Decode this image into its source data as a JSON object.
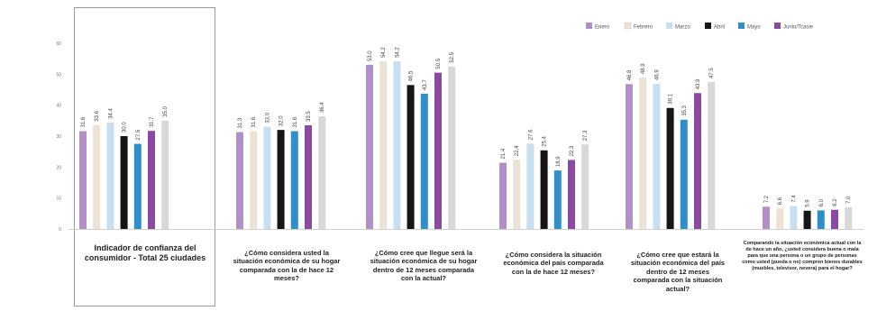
{
  "chart_data": {
    "type": "bar",
    "title": "",
    "xlabel": "",
    "ylabel": "",
    "ylim": [
      0,
      60
    ],
    "y_ticks": [
      "0",
      "10",
      "20",
      "30",
      "40",
      "50",
      "60"
    ],
    "legend_position": "top-right",
    "grid": false,
    "series": [
      {
        "name": "Enero",
        "color": "#b28fc9"
      },
      {
        "name": "Febrero",
        "color": "#ece2d6"
      },
      {
        "name": "Marzo",
        "color": "#c8dff2"
      },
      {
        "name": "Abril",
        "color": "#151515"
      },
      {
        "name": "Mayo",
        "color": "#2f8fcc"
      },
      {
        "name": "Junio/Tcasie",
        "color": "#8a4aa4"
      },
      {
        "name": "",
        "color": "#d8d8d8"
      }
    ],
    "groups": [
      {
        "label": "Indicador de confianza del consumidor - Total 25 ciudades",
        "values": [
          31.6,
          33.6,
          34.4,
          30.0,
          27.5,
          31.7,
          35.0
        ],
        "value_labels": [
          "31.6",
          "33.6",
          "34.4",
          "30.0",
          "27.5",
          "31.7",
          "35.0"
        ]
      },
      {
        "label": "¿Cómo considera usted la situación económica de su hogar comparada con la de hace 12 meses?",
        "values": [
          31.3,
          31.6,
          33.0,
          32.0,
          31.6,
          33.5,
          36.4
        ],
        "value_labels": [
          "31.3",
          "31.6",
          "33.0",
          "32.0",
          "31.6",
          "33.5",
          "36.4"
        ]
      },
      {
        "label": "¿Cómo cree que llegue será la situación económica de su hogar dentro de 12 meses comparada con la actual?",
        "values": [
          53.0,
          54.2,
          54.2,
          46.5,
          43.7,
          50.5,
          52.5
        ],
        "value_labels": [
          "53.0",
          "54.2",
          "54.2",
          "46.5",
          "43.7",
          "50.5",
          "52.5"
        ]
      },
      {
        "label": "¿Cómo considera la situación económica del país comparada con la de hace 12 meses?",
        "values": [
          21.4,
          22.4,
          27.6,
          25.4,
          18.9,
          22.3,
          27.3
        ],
        "value_labels": [
          "21.4",
          "22.4",
          "27.6",
          "25.4",
          "18.9",
          "22.3",
          "27.3"
        ]
      },
      {
        "label": "¿Cómo cree que estará la situación económica del país dentro de 12 meses comparada con la situación actual?",
        "values": [
          46.8,
          48.9,
          46.9,
          39.1,
          35.3,
          43.9,
          47.5
        ],
        "value_labels": [
          "46.8",
          "48.9",
          "46.9",
          "39.1",
          "35.3",
          "43.9",
          "47.5"
        ]
      },
      {
        "label": "Comparando la situación económica actual con la de hace un año, ¿usted considera buena o mala para que una persona o un grupo de personas como usted (pueda o no) compren bienes durables (muebles, televisor, nevera) para el hogar?",
        "values": [
          7.2,
          6.6,
          7.4,
          5.9,
          6.0,
          6.2,
          7.0
        ],
        "value_labels": [
          "7.2",
          "6.6",
          "7.4",
          "5.9",
          "6.0",
          "6.2",
          "7.0"
        ]
      }
    ]
  }
}
